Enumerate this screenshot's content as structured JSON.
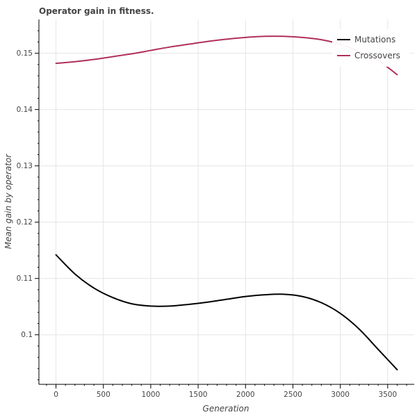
{
  "chart_data": {
    "type": "line",
    "title": "Operator gain in fitness.",
    "xlabel": "Generation",
    "ylabel": "Mean gain by operator",
    "xlim": [
      -180,
      3780
    ],
    "ylim": [
      0.0912,
      0.156
    ],
    "x_ticks": [
      0,
      500,
      1000,
      1500,
      2000,
      2500,
      3000,
      3500
    ],
    "x_tick_labels": [
      "0",
      "500",
      "1000",
      "1500",
      "2000",
      "2500",
      "3000",
      "3500"
    ],
    "y_ticks": [
      0.1,
      0.11,
      0.12,
      0.13,
      0.14,
      0.15
    ],
    "y_tick_labels": [
      "0.1",
      "0.11",
      "0.12",
      "0.13",
      "0.14",
      "0.15"
    ],
    "grid": true,
    "legend_position": "top-right",
    "x": [
      0,
      200,
      400,
      600,
      800,
      1000,
      1200,
      1400,
      1600,
      1800,
      2000,
      2200,
      2400,
      2600,
      2800,
      3000,
      3200,
      3400,
      3600
    ],
    "series": [
      {
        "name": "Mutations",
        "color": "#000000",
        "values": [
          0.1142,
          0.1108,
          0.1083,
          0.1066,
          0.1055,
          0.1051,
          0.1051,
          0.1054,
          0.1058,
          0.1063,
          0.1068,
          0.1071,
          0.1072,
          0.1068,
          0.1057,
          0.1038,
          0.101,
          0.0974,
          0.0938
        ]
      },
      {
        "name": "Crossovers",
        "color": "#b03058",
        "values": [
          0.1482,
          0.1485,
          0.1489,
          0.1494,
          0.1499,
          0.1505,
          0.1511,
          0.1516,
          0.1521,
          0.1525,
          0.1528,
          0.153,
          0.153,
          0.1528,
          0.1524,
          0.1516,
          0.1503,
          0.1487,
          0.1462
        ]
      }
    ]
  }
}
